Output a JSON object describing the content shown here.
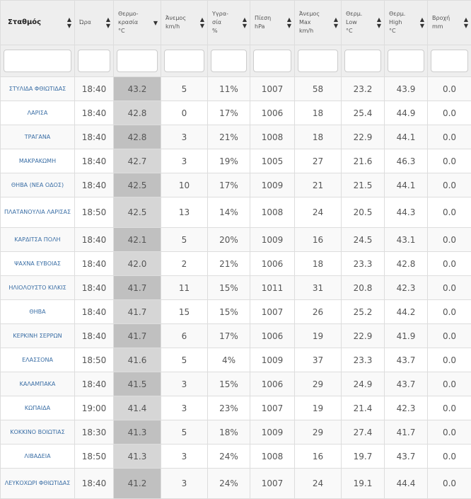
{
  "headers": [
    {
      "l1": "Σταθμός",
      "l2": "",
      "l3": "",
      "sort": "both"
    },
    {
      "l1": "Ώρα",
      "l2": "",
      "l3": "",
      "sort": "both"
    },
    {
      "l1": "Θερμο-",
      "l2": "κρασία",
      "l3": "°C",
      "sort": "desc"
    },
    {
      "l1": "Άνεμος",
      "l2": "km/h",
      "l3": "",
      "sort": "both"
    },
    {
      "l1": "Υγρα-",
      "l2": "σία",
      "l3": "%",
      "sort": "both"
    },
    {
      "l1": "Πίεση",
      "l2": "hPa",
      "l3": "",
      "sort": "both"
    },
    {
      "l1": "Άνεμος",
      "l2": "Max",
      "l3": "km/h",
      "sort": "both"
    },
    {
      "l1": "Θερμ.",
      "l2": "Low",
      "l3": "°C",
      "sort": "both"
    },
    {
      "l1": "Θερμ.",
      "l2": "High",
      "l3": "°C",
      "sort": "both"
    },
    {
      "l1": "Βροχή",
      "l2": "mm",
      "l3": "",
      "sort": "both"
    }
  ],
  "rows": [
    [
      "ΣΤΥΛΙΔΑ ΦΘΙΩΤΙΔΑΣ",
      "18:40",
      "43.2",
      "5",
      "11%",
      "1007",
      "58",
      "23.2",
      "43.9",
      "0.0"
    ],
    [
      "ΛΑΡΙΣΑ",
      "18:40",
      "42.8",
      "0",
      "17%",
      "1006",
      "18",
      "25.4",
      "44.9",
      "0.0"
    ],
    [
      "ΤΡΑΓΑΝΑ",
      "18:40",
      "42.8",
      "3",
      "21%",
      "1008",
      "18",
      "22.9",
      "44.1",
      "0.0"
    ],
    [
      "ΜΑΚΡΑΚΩΜΗ",
      "18:40",
      "42.7",
      "3",
      "19%",
      "1005",
      "27",
      "21.6",
      "46.3",
      "0.0"
    ],
    [
      "ΘΗΒΑ (ΝΕΑ ΟΔΟΣ)",
      "18:40",
      "42.5",
      "10",
      "17%",
      "1009",
      "21",
      "21.5",
      "44.1",
      "0.0"
    ],
    [
      "ΠΛΑΤΑΝΟΥΛΙΑ ΛΑΡΙΣΑΣ",
      "18:50",
      "42.5",
      "13",
      "14%",
      "1008",
      "24",
      "20.5",
      "44.3",
      "0.0"
    ],
    [
      "ΚΑΡΔΙΤΣΑ ΠΟΛΗ",
      "18:40",
      "42.1",
      "5",
      "20%",
      "1009",
      "16",
      "24.5",
      "43.1",
      "0.0"
    ],
    [
      "ΨΑΧΝΑ ΕΥΒΟΙΑΣ",
      "18:40",
      "42.0",
      "2",
      "21%",
      "1006",
      "18",
      "23.3",
      "42.8",
      "0.0"
    ],
    [
      "ΗΛΙΟΛΟΥΣΤΟ ΚΙΛΚΙΣ",
      "18:40",
      "41.7",
      "11",
      "15%",
      "1011",
      "31",
      "20.8",
      "42.3",
      "0.0"
    ],
    [
      "ΘΗΒΑ",
      "18:40",
      "41.7",
      "15",
      "15%",
      "1007",
      "26",
      "25.2",
      "44.2",
      "0.0"
    ],
    [
      "ΚΕΡΚΙΝΗ ΣΕΡΡΩΝ",
      "18:40",
      "41.7",
      "6",
      "17%",
      "1006",
      "19",
      "22.9",
      "41.9",
      "0.0"
    ],
    [
      "ΕΛΑΣΣΟΝΑ",
      "18:50",
      "41.6",
      "5",
      "4%",
      "1009",
      "37",
      "23.3",
      "43.7",
      "0.0"
    ],
    [
      "ΚΑΛΑΜΠΑΚΑ",
      "18:40",
      "41.5",
      "3",
      "15%",
      "1006",
      "29",
      "24.9",
      "43.7",
      "0.0"
    ],
    [
      "ΚΩΠΑΙΔΑ",
      "19:00",
      "41.4",
      "3",
      "23%",
      "1007",
      "19",
      "21.4",
      "42.3",
      "0.0"
    ],
    [
      "ΚΟΚΚΙΝΟ ΒΟΙΩΤΙΑΣ",
      "18:30",
      "41.3",
      "5",
      "18%",
      "1009",
      "29",
      "27.4",
      "41.7",
      "0.0"
    ],
    [
      "ΛΙΒΑΔΕΙΑ",
      "18:50",
      "41.3",
      "3",
      "24%",
      "1008",
      "16",
      "19.7",
      "43.7",
      "0.0"
    ],
    [
      "ΛΕΥΚΟΧΩΡΙ ΦΘΙΩΤΙΔΑΣ",
      "18:40",
      "41.2",
      "3",
      "24%",
      "1007",
      "24",
      "19.1",
      "44.4",
      "0.0"
    ]
  ]
}
